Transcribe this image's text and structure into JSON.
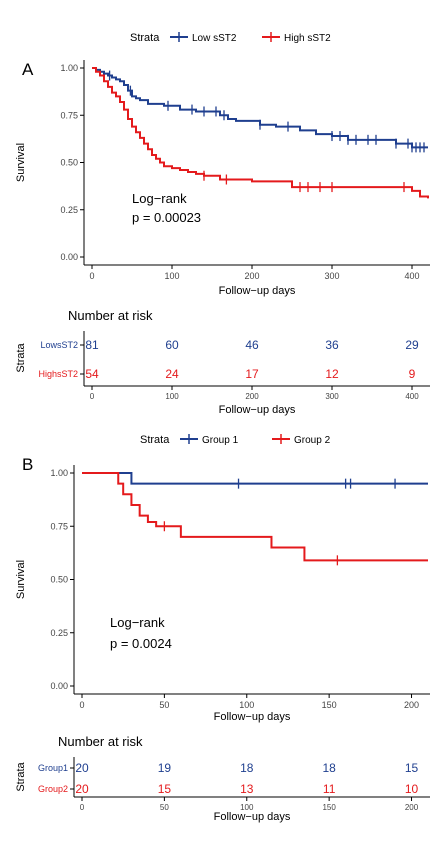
{
  "colors": {
    "series1": "#1f3f8f",
    "series2": "#e41a1c",
    "axis": "#000000",
    "text": "#000000",
    "tick": "#444444"
  },
  "chart_data": [
    {
      "panel": "A",
      "type": "line",
      "legend": {
        "title": "Strata",
        "position": "top"
      },
      "xlabel": "Follow−up days",
      "ylabel": "Survival",
      "xlim": [
        0,
        420
      ],
      "ylim": [
        0,
        1
      ],
      "x_ticks": [
        "0",
        "100",
        "200",
        "300",
        "400"
      ],
      "y_ticks": [
        "0.00",
        "0.25",
        "0.50",
        "0.75",
        "1.00"
      ],
      "annotation": [
        "Log−rank",
        "p = 0.00023"
      ],
      "grid": false,
      "series": [
        {
          "name": "Low sST2",
          "x": [
            0,
            5,
            10,
            15,
            20,
            25,
            30,
            35,
            40,
            45,
            50,
            55,
            60,
            70,
            80,
            90,
            100,
            110,
            130,
            150,
            160,
            170,
            180,
            200,
            210,
            230,
            260,
            280,
            300,
            320,
            360,
            380,
            400,
            420
          ],
          "y": [
            1.0,
            0.99,
            0.98,
            0.97,
            0.96,
            0.95,
            0.94,
            0.93,
            0.91,
            0.88,
            0.85,
            0.84,
            0.83,
            0.81,
            0.81,
            0.8,
            0.8,
            0.78,
            0.77,
            0.77,
            0.75,
            0.73,
            0.72,
            0.72,
            0.7,
            0.69,
            0.67,
            0.65,
            0.64,
            0.62,
            0.62,
            0.6,
            0.58,
            0.58
          ],
          "censor_x": [
            22,
            48,
            95,
            125,
            140,
            155,
            165,
            210,
            245,
            300,
            310,
            320,
            330,
            345,
            355,
            380,
            395,
            400,
            405,
            410,
            415
          ]
        },
        {
          "name": "High sST2",
          "x": [
            0,
            5,
            10,
            15,
            20,
            25,
            30,
            35,
            40,
            45,
            50,
            55,
            60,
            65,
            70,
            75,
            80,
            85,
            90,
            100,
            110,
            120,
            130,
            140,
            160,
            200,
            250,
            320,
            400,
            410,
            420
          ],
          "y": [
            1.0,
            0.98,
            0.96,
            0.93,
            0.9,
            0.87,
            0.85,
            0.82,
            0.78,
            0.73,
            0.69,
            0.66,
            0.63,
            0.6,
            0.57,
            0.54,
            0.52,
            0.5,
            0.48,
            0.47,
            0.46,
            0.45,
            0.44,
            0.43,
            0.41,
            0.4,
            0.37,
            0.37,
            0.35,
            0.32,
            0.31
          ],
          "censor_x": [
            140,
            168,
            260,
            270,
            285,
            300,
            390
          ]
        }
      ],
      "risk_table": {
        "title": "Number at risk",
        "axis_label": "Strata",
        "xlabel": "Follow−up days",
        "times": [
          "0",
          "100",
          "200",
          "300",
          "400"
        ],
        "rows": [
          {
            "label": "LowsST2",
            "values": [
              "81",
              "60",
              "46",
              "36",
              "29"
            ]
          },
          {
            "label": "HighsST2",
            "values": [
              "54",
              "24",
              "17",
              "12",
              "9"
            ]
          }
        ]
      }
    },
    {
      "panel": "B",
      "type": "line",
      "legend": {
        "title": "Strata",
        "position": "top"
      },
      "xlabel": "Follow−up days",
      "ylabel": "Survival",
      "xlim": [
        0,
        210
      ],
      "ylim": [
        0,
        1
      ],
      "x_ticks": [
        "0",
        "50",
        "100",
        "150",
        "200"
      ],
      "y_ticks": [
        "0.00",
        "0.25",
        "0.50",
        "0.75",
        "1.00"
      ],
      "annotation": [
        "Log−rank",
        "p = 0.0024"
      ],
      "grid": false,
      "series": [
        {
          "name": "Group 1",
          "x": [
            0,
            30,
            210
          ],
          "y": [
            1.0,
            0.95,
            0.95
          ],
          "censor_x": [
            95,
            160,
            163,
            190
          ]
        },
        {
          "name": "Group 2",
          "x": [
            0,
            22,
            25,
            30,
            35,
            40,
            45,
            60,
            115,
            135,
            210
          ],
          "y": [
            1.0,
            0.95,
            0.9,
            0.85,
            0.8,
            0.77,
            0.75,
            0.7,
            0.65,
            0.59,
            0.59
          ],
          "censor_x": [
            50,
            155
          ]
        }
      ],
      "risk_table": {
        "title": "Number at risk",
        "axis_label": "Strata",
        "xlabel": "Follow−up days",
        "times": [
          "0",
          "50",
          "100",
          "150",
          "200"
        ],
        "rows": [
          {
            "label": "Group1",
            "values": [
              "20",
              "19",
              "18",
              "18",
              "15"
            ]
          },
          {
            "label": "Group2",
            "values": [
              "20",
              "15",
              "13",
              "11",
              "10"
            ]
          }
        ]
      }
    }
  ]
}
